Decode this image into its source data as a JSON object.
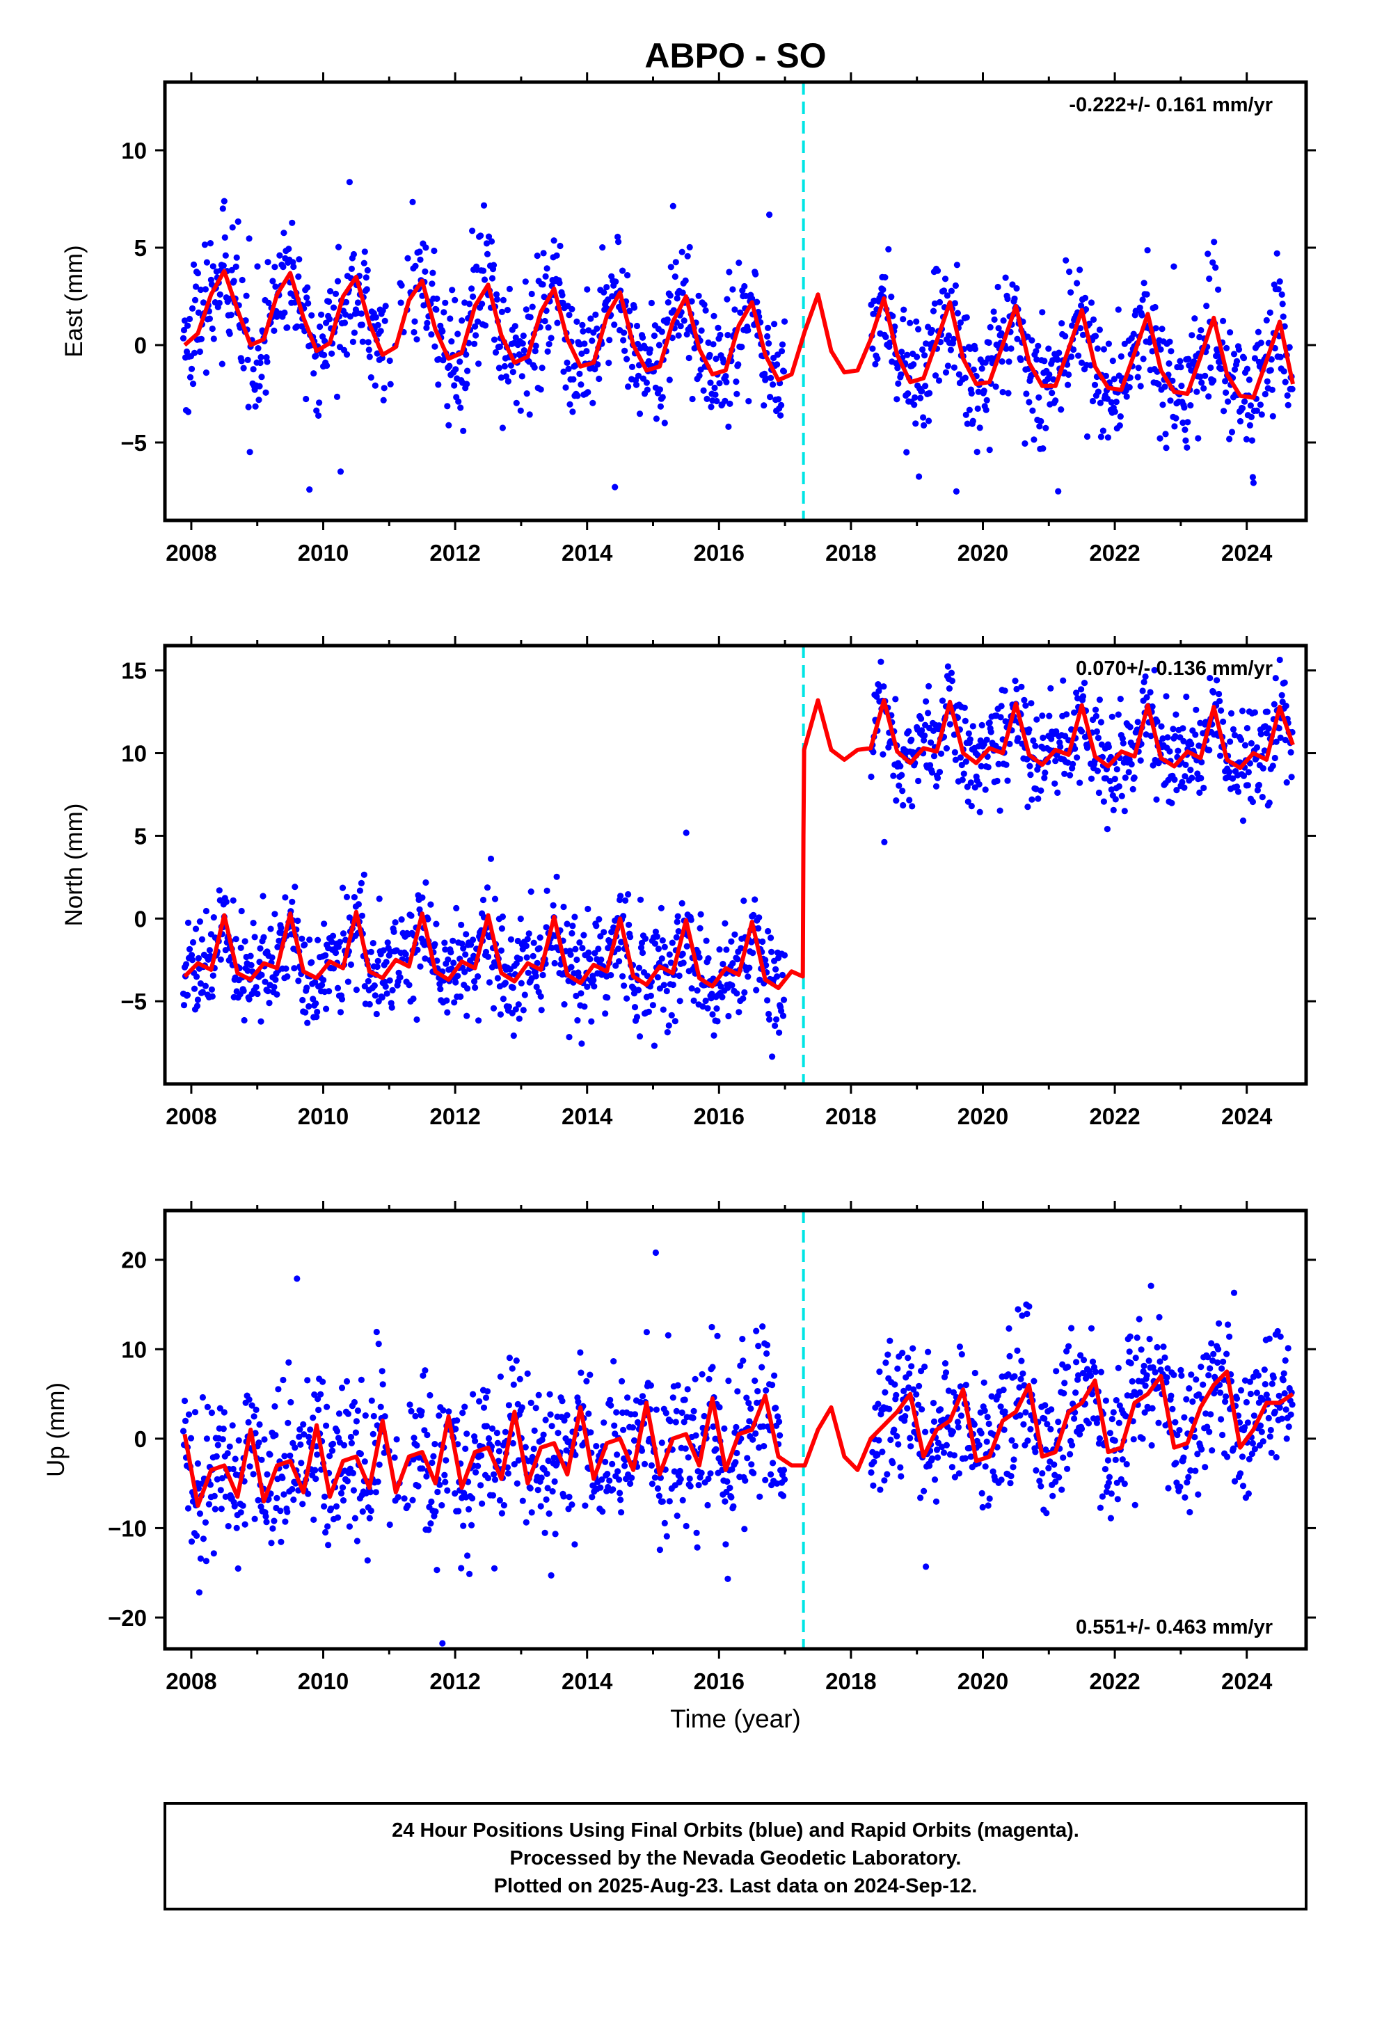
{
  "title": "ABPO - SO",
  "xlabel": "Time (year)",
  "footer": {
    "line1": "24 Hour Positions Using Final Orbits (blue) and Rapid Orbits (magenta).",
    "line2": "Processed by the Nevada Geodetic Laboratory.",
    "line3": "Plotted on 2025-Aug-23. Last data on 2024-Sep-12."
  },
  "colors": {
    "points": "#0000ff",
    "model": "#ff0000",
    "offset_line": "#00e5e5",
    "frame": "#000000"
  },
  "chart_data": [
    {
      "type": "scatter",
      "ylabel": "East (mm)",
      "rate_label": "-0.222+/- 0.161 mm/yr",
      "xlim": [
        2007.6,
        2024.9
      ],
      "ylim": [
        -9,
        13.5
      ],
      "xticks": [
        2008,
        2010,
        2012,
        2014,
        2016,
        2018,
        2020,
        2022,
        2024
      ],
      "yticks": [
        -5,
        0,
        5,
        10
      ],
      "ytick_labels": [
        "−5",
        "0",
        "5",
        "10"
      ],
      "offset_year": 2017.28,
      "gap": [
        2017.0,
        2018.3
      ],
      "series": [
        {
          "kind": "model",
          "x": [
            2007.9,
            2008.1,
            2008.3,
            2008.5,
            2008.7,
            2008.9,
            2009.1,
            2009.3,
            2009.5,
            2009.7,
            2009.9,
            2010.1,
            2010.3,
            2010.5,
            2010.7,
            2010.9,
            2011.1,
            2011.3,
            2011.5,
            2011.7,
            2011.9,
            2012.1,
            2012.3,
            2012.5,
            2012.7,
            2012.9,
            2013.1,
            2013.3,
            2013.5,
            2013.7,
            2013.9,
            2014.1,
            2014.3,
            2014.5,
            2014.7,
            2014.9,
            2015.1,
            2015.3,
            2015.5,
            2015.7,
            2015.9,
            2016.1,
            2016.3,
            2016.5,
            2016.7,
            2016.9,
            2017.1,
            2017.3,
            2017.5,
            2017.7,
            2017.9,
            2018.1,
            2018.3,
            2018.5,
            2018.7,
            2018.9,
            2019.1,
            2019.3,
            2019.5,
            2019.7,
            2019.9,
            2020.1,
            2020.3,
            2020.5,
            2020.7,
            2020.9,
            2021.1,
            2021.3,
            2021.5,
            2021.7,
            2021.9,
            2022.1,
            2022.3,
            2022.5,
            2022.7,
            2022.9,
            2023.1,
            2023.3,
            2023.5,
            2023.7,
            2023.9,
            2024.1,
            2024.3,
            2024.5,
            2024.7
          ],
          "y": [
            0.0,
            0.6,
            2.6,
            3.8,
            1.8,
            0.0,
            0.3,
            2.6,
            3.7,
            1.4,
            -0.3,
            0.1,
            2.5,
            3.5,
            1.1,
            -0.5,
            -0.1,
            2.3,
            3.3,
            0.8,
            -0.7,
            -0.4,
            2.0,
            3.1,
            0.5,
            -0.9,
            -0.6,
            1.7,
            2.9,
            0.3,
            -1.1,
            -0.9,
            1.5,
            2.7,
            0.0,
            -1.3,
            -1.1,
            1.2,
            2.5,
            -0.2,
            -1.5,
            -1.3,
            1.0,
            2.2,
            -0.5,
            -1.8,
            -1.5,
            0.7,
            2.6,
            -0.3,
            -1.4,
            -1.3,
            0.3,
            2.4,
            -0.5,
            -1.9,
            -1.7,
            0.2,
            2.2,
            -0.7,
            -2.0,
            -1.9,
            0.0,
            2.0,
            -0.9,
            -2.1,
            -2.1,
            -0.2,
            1.8,
            -1.1,
            -2.2,
            -2.3,
            -0.4,
            1.6,
            -1.3,
            -2.4,
            -2.5,
            -0.6,
            1.4,
            -1.5,
            -2.6,
            -2.7,
            -0.8,
            1.2,
            -2.0
          ]
        }
      ]
    },
    {
      "type": "scatter",
      "ylabel": "North (mm)",
      "rate_label": "0.070+/- 0.136 mm/yr",
      "xlim": [
        2007.6,
        2024.9
      ],
      "ylim": [
        -10,
        16.5
      ],
      "xticks": [
        2008,
        2010,
        2012,
        2014,
        2016,
        2018,
        2020,
        2022,
        2024
      ],
      "yticks": [
        -5,
        0,
        5,
        10,
        15
      ],
      "ytick_labels": [
        "−5",
        "0",
        "5",
        "10",
        "15"
      ],
      "offset_year": 2017.28,
      "gap": [
        2017.0,
        2018.3
      ],
      "series": [
        {
          "kind": "model",
          "x": [
            2007.9,
            2008.1,
            2008.3,
            2008.5,
            2008.7,
            2008.9,
            2009.1,
            2009.3,
            2009.5,
            2009.7,
            2009.9,
            2010.1,
            2010.3,
            2010.5,
            2010.7,
            2010.9,
            2011.1,
            2011.3,
            2011.5,
            2011.7,
            2011.9,
            2012.1,
            2012.3,
            2012.5,
            2012.7,
            2012.9,
            2013.1,
            2013.3,
            2013.5,
            2013.7,
            2013.9,
            2014.1,
            2014.3,
            2014.5,
            2014.7,
            2014.9,
            2015.1,
            2015.3,
            2015.5,
            2015.7,
            2015.9,
            2016.1,
            2016.3,
            2016.5,
            2016.7,
            2016.9,
            2017.1,
            2017.27,
            2017.28,
            2017.29,
            2017.5,
            2017.7,
            2017.9,
            2018.1,
            2018.3,
            2018.5,
            2018.7,
            2018.9,
            2019.1,
            2019.3,
            2019.5,
            2019.7,
            2019.9,
            2020.1,
            2020.3,
            2020.5,
            2020.7,
            2020.9,
            2021.1,
            2021.3,
            2021.5,
            2021.7,
            2021.9,
            2022.1,
            2022.3,
            2022.5,
            2022.7,
            2022.9,
            2023.1,
            2023.3,
            2023.5,
            2023.7,
            2023.9,
            2024.1,
            2024.3,
            2024.5,
            2024.7
          ],
          "y": [
            -3.5,
            -2.7,
            -3.1,
            0.2,
            -3.3,
            -3.7,
            -2.7,
            -3.0,
            0.3,
            -3.2,
            -3.6,
            -2.6,
            -3.0,
            0.4,
            -3.2,
            -3.6,
            -2.5,
            -2.9,
            0.3,
            -3.2,
            -3.7,
            -2.6,
            -3.0,
            0.2,
            -3.3,
            -3.8,
            -2.7,
            -3.1,
            0.1,
            -3.4,
            -3.9,
            -2.8,
            -3.2,
            0.0,
            -3.5,
            -4.0,
            -2.9,
            -3.3,
            -0.1,
            -3.6,
            -4.1,
            -3.0,
            -3.4,
            -0.2,
            -3.7,
            -4.2,
            -3.2,
            -3.5,
            5.0,
            10.2,
            13.2,
            10.2,
            9.6,
            10.2,
            10.3,
            13.2,
            10.1,
            9.4,
            10.3,
            10.1,
            13.1,
            10.0,
            9.4,
            10.3,
            10.0,
            13.0,
            9.9,
            9.3,
            10.2,
            9.9,
            12.9,
            9.8,
            9.2,
            10.1,
            9.8,
            12.9,
            9.7,
            9.2,
            10.1,
            9.7,
            12.8,
            9.6,
            9.1,
            10.0,
            9.6,
            12.8,
            10.5
          ]
        }
      ]
    },
    {
      "type": "scatter",
      "ylabel": "Up (mm)",
      "rate_label": "0.551+/- 0.463 mm/yr",
      "xlim": [
        2007.6,
        2024.9
      ],
      "ylim": [
        -23.5,
        25.5
      ],
      "xticks": [
        2008,
        2010,
        2012,
        2014,
        2016,
        2018,
        2020,
        2022,
        2024
      ],
      "yticks": [
        -20,
        -10,
        0,
        10,
        20
      ],
      "ytick_labels": [
        "−20",
        "−10",
        "0",
        "10",
        "20"
      ],
      "offset_year": 2017.28,
      "gap": [
        2017.0,
        2018.3
      ],
      "series": [
        {
          "kind": "model",
          "x": [
            2007.9,
            2008.1,
            2008.3,
            2008.5,
            2008.7,
            2008.9,
            2009.1,
            2009.3,
            2009.5,
            2009.7,
            2009.9,
            2010.1,
            2010.3,
            2010.5,
            2010.7,
            2010.9,
            2011.1,
            2011.3,
            2011.5,
            2011.7,
            2011.9,
            2012.1,
            2012.3,
            2012.5,
            2012.7,
            2012.9,
            2013.1,
            2013.3,
            2013.5,
            2013.7,
            2013.9,
            2014.1,
            2014.3,
            2014.5,
            2014.7,
            2014.9,
            2015.1,
            2015.3,
            2015.5,
            2015.7,
            2015.9,
            2016.1,
            2016.3,
            2016.5,
            2016.7,
            2016.9,
            2017.1,
            2017.3,
            2017.5,
            2017.7,
            2017.9,
            2018.1,
            2018.3,
            2018.5,
            2018.7,
            2018.9,
            2019.1,
            2019.3,
            2019.5,
            2019.7,
            2019.9,
            2020.1,
            2020.3,
            2020.5,
            2020.7,
            2020.9,
            2021.1,
            2021.3,
            2021.5,
            2021.7,
            2021.9,
            2022.1,
            2022.3,
            2022.5,
            2022.7,
            2022.9,
            2023.1,
            2023.3,
            2023.5,
            2023.7,
            2023.9,
            2024.1,
            2024.3,
            2024.5,
            2024.7
          ],
          "y": [
            0.5,
            -7.5,
            -3.5,
            -3.0,
            -6.5,
            1.0,
            -7.0,
            -3.0,
            -2.5,
            -6.0,
            1.5,
            -6.5,
            -2.5,
            -2.0,
            -5.5,
            2.0,
            -6.0,
            -2.0,
            -1.5,
            -5.0,
            2.5,
            -5.5,
            -1.5,
            -1.0,
            -4.5,
            3.0,
            -5.0,
            -1.0,
            -0.5,
            -4.0,
            3.5,
            -4.5,
            -0.5,
            0.0,
            -3.5,
            4.0,
            -4.0,
            0.0,
            0.5,
            -3.0,
            4.5,
            -3.5,
            0.5,
            1.0,
            4.8,
            -2.0,
            -3.0,
            -3.0,
            1.0,
            3.5,
            -2.0,
            -3.5,
            0.0,
            1.5,
            3.0,
            5.0,
            -2.0,
            1.0,
            2.0,
            5.5,
            -2.5,
            -2.0,
            2.0,
            3.0,
            6.0,
            -2.0,
            -1.5,
            3.0,
            4.0,
            6.5,
            -1.5,
            -1.0,
            4.0,
            5.0,
            7.0,
            -1.0,
            -0.5,
            3.5,
            6.0,
            7.5,
            -1.0,
            1.0,
            4.0,
            4.0,
            5.0
          ]
        }
      ]
    }
  ]
}
